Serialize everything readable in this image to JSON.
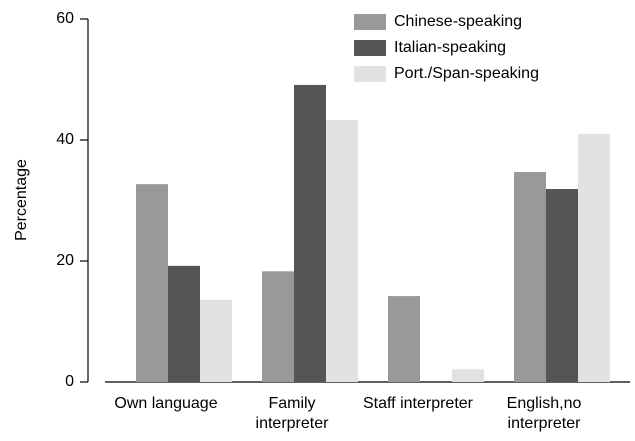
{
  "chart_data": {
    "type": "bar",
    "ylabel": "Percentage",
    "categories": [
      "Own language",
      "Family interpreter",
      "Staff interpreter",
      "English,no interpreter"
    ],
    "series": [
      {
        "name": "Chinese-speaking",
        "color": "#999999",
        "values": [
          32.7,
          18.3,
          14.2,
          34.7
        ]
      },
      {
        "name": "Italian-speaking",
        "color": "#555555",
        "values": [
          19.2,
          49.1,
          0,
          31.9
        ]
      },
      {
        "name": "Port./Span-speaking",
        "color": "#e2e2e2",
        "values": [
          13.6,
          43.3,
          2.1,
          41.0
        ]
      }
    ],
    "ylim": [
      0,
      60
    ],
    "yticks": [
      0,
      20,
      40,
      60
    ],
    "legend": "upper right"
  }
}
